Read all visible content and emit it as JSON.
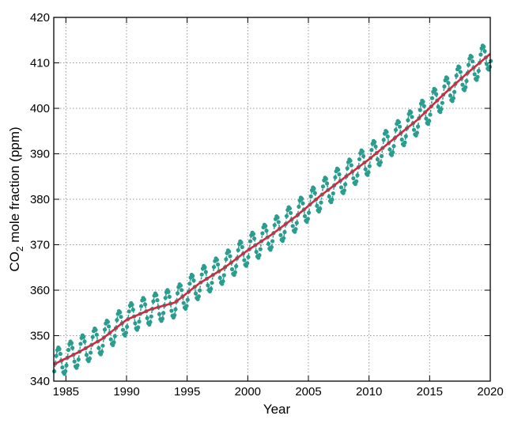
{
  "chart_data": {
    "type": "line",
    "title": "",
    "xlabel": "Year",
    "ylabel_main": "CO",
    "ylabel_sub": "2",
    "ylabel_rest": " mole fraction (ppm)",
    "xlim": [
      1984,
      2020
    ],
    "ylim": [
      340,
      420
    ],
    "xticks": [
      1985,
      1990,
      1995,
      2000,
      2005,
      2010,
      2015,
      2020
    ],
    "yticks": [
      340,
      350,
      360,
      370,
      380,
      390,
      400,
      410,
      420
    ],
    "grid": true,
    "legend": "none",
    "colors": {
      "monthly": "#2a9d8f",
      "trend": "#d7263d"
    },
    "series": [
      {
        "style": "dashed line with markers (monthly)",
        "seasonal_amplitude_ppm": 3.2,
        "seasonal_peak_month": 5
      },
      {
        "style": "solid line (trend)",
        "x": [
          1984.0,
          1986.0,
          1988.0,
          1990.0,
          1992.0,
          1994.0,
          1996.0,
          1998.0,
          2000.0,
          2002.0,
          2004.0,
          2006.0,
          2008.0,
          2010.0,
          2012.0,
          2014.0,
          2016.0,
          2018.0,
          2020.0
        ],
        "y": [
          343.7,
          346.3,
          349.3,
          353.5,
          355.8,
          357.3,
          361.5,
          364.8,
          368.8,
          372.3,
          376.3,
          380.8,
          384.8,
          388.8,
          393.2,
          397.5,
          402.7,
          407.5,
          412.0
        ]
      }
    ]
  }
}
